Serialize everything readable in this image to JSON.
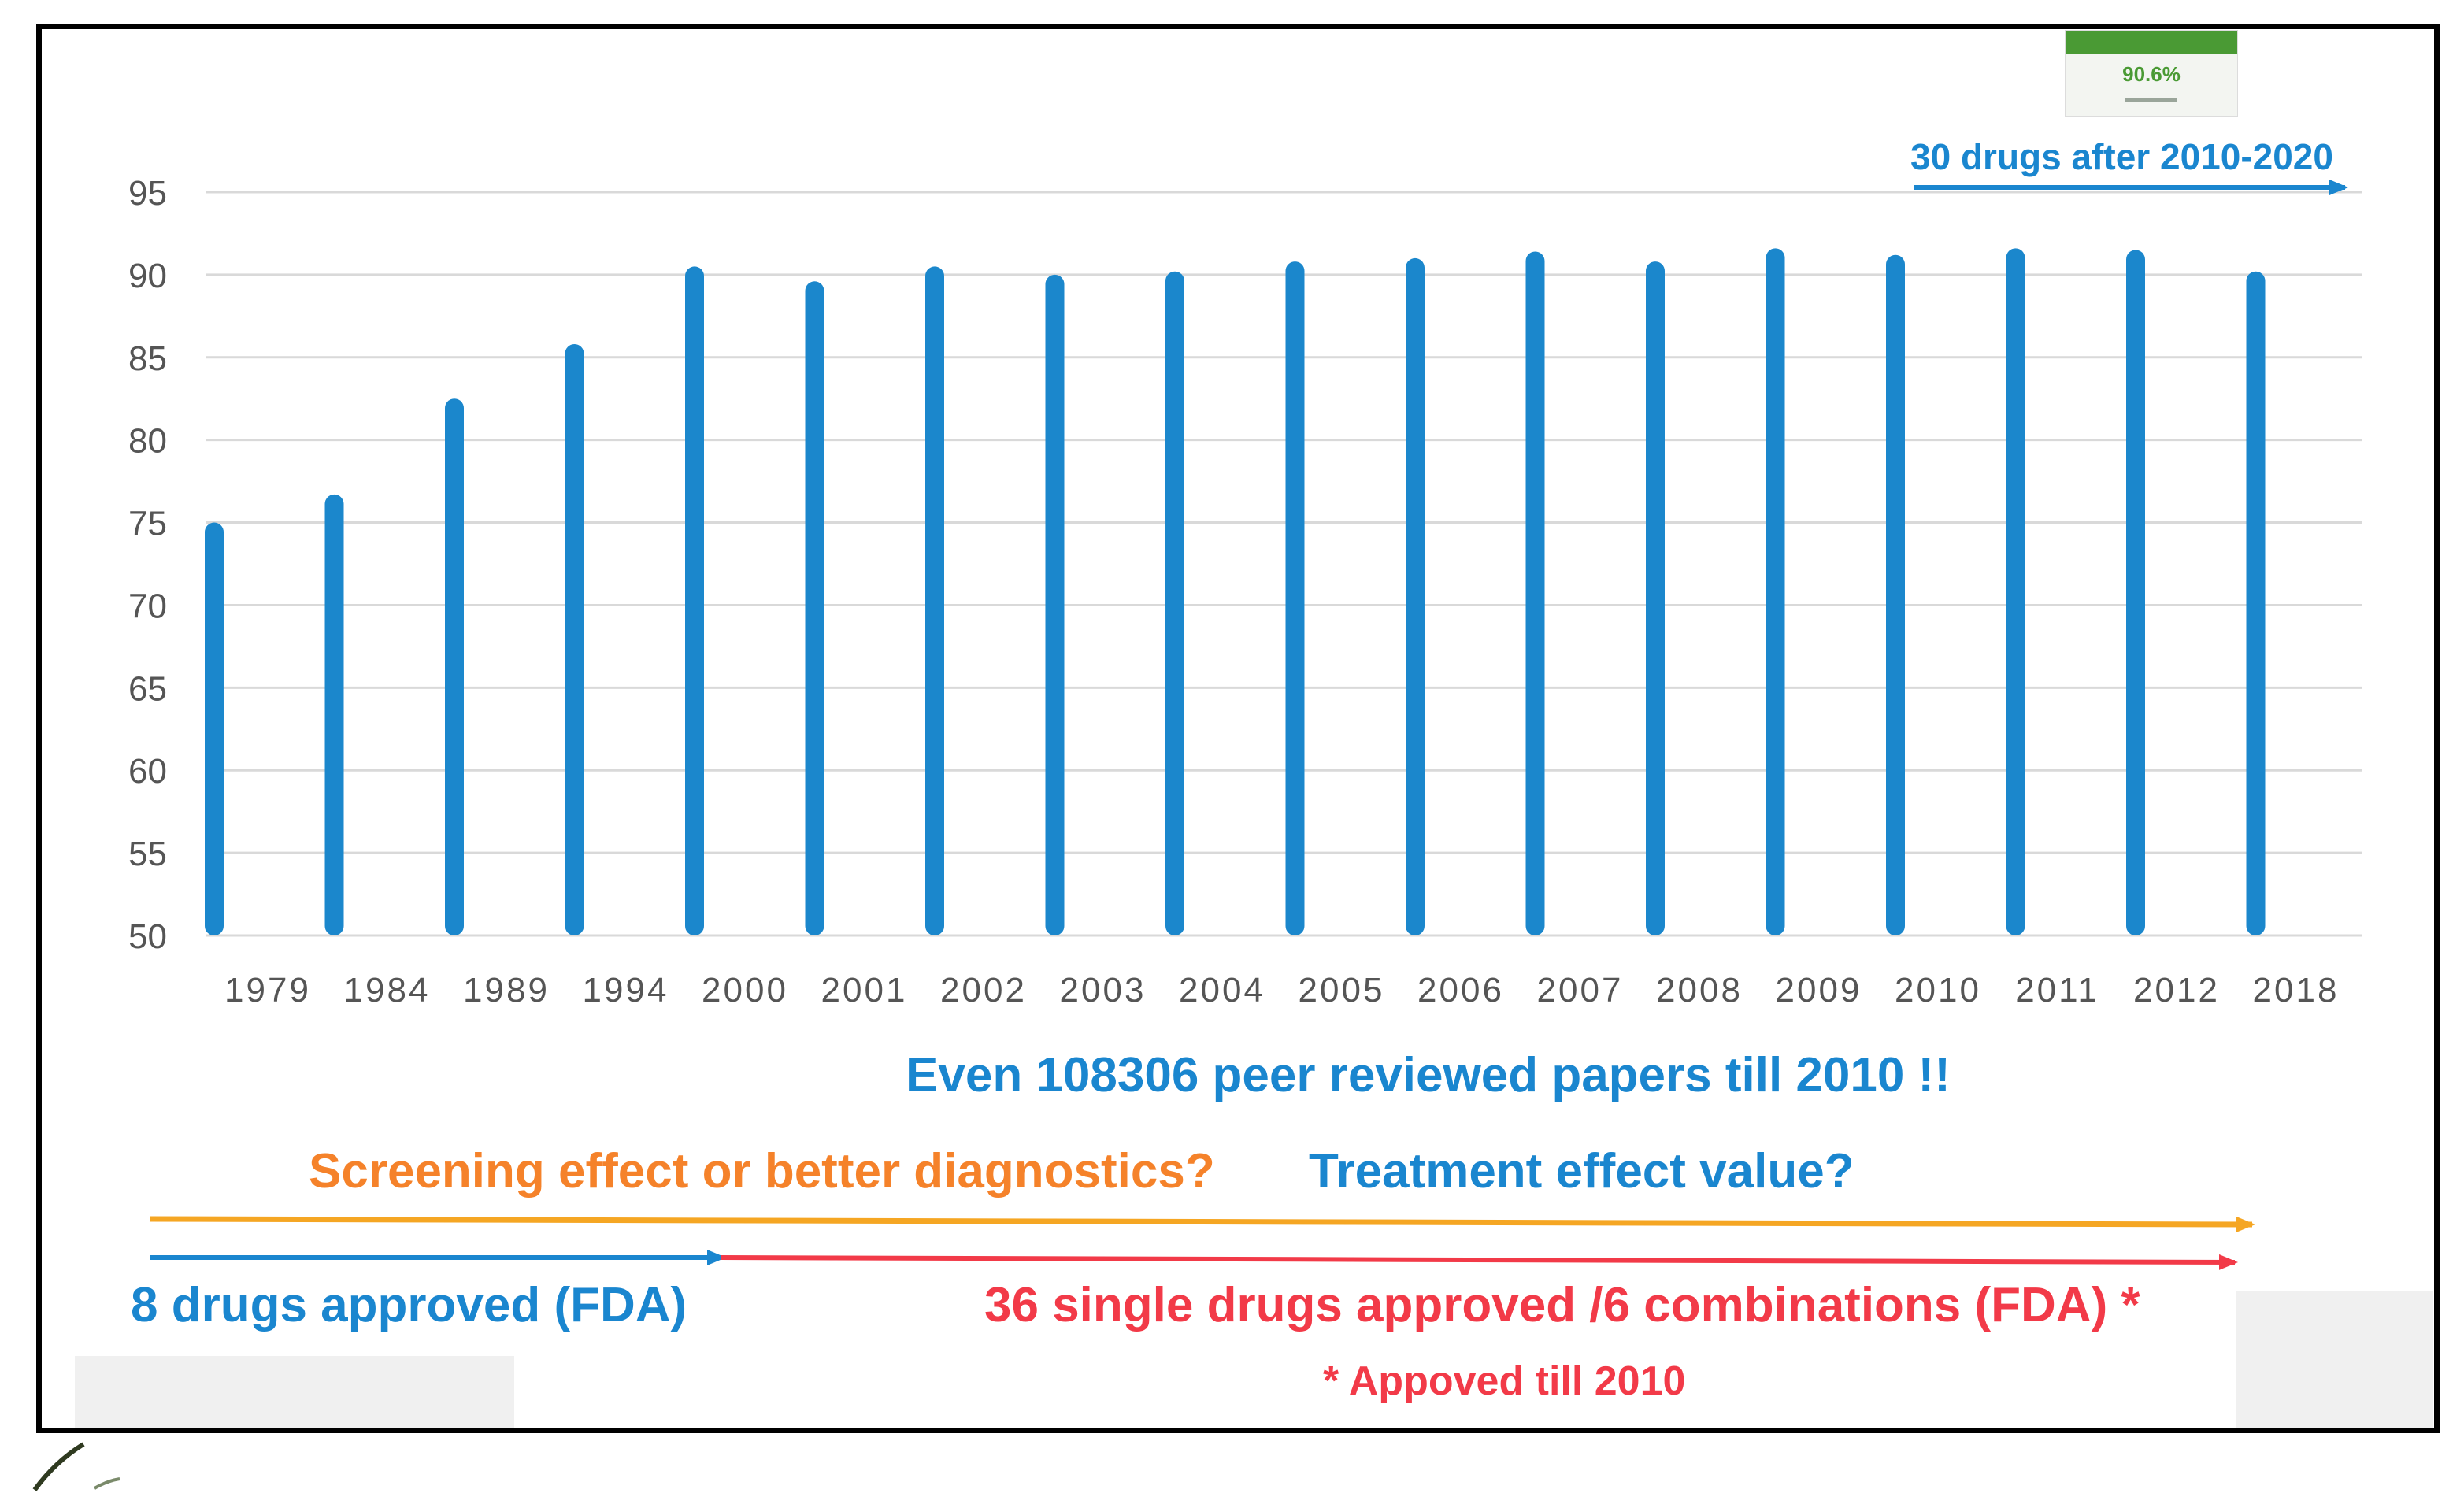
{
  "chart_data": {
    "type": "bar",
    "title": "",
    "xlabel": "",
    "ylabel": "",
    "categories": [
      "1979",
      "1984",
      "1989",
      "1994",
      "2000",
      "2001",
      "2002",
      "2003",
      "2004",
      "2005",
      "2006",
      "2007",
      "2008",
      "2009",
      "2010",
      "2011",
      "2012",
      "2018"
    ],
    "values": [
      75.0,
      76.7,
      82.5,
      85.8,
      90.5,
      89.6,
      90.5,
      90.0,
      90.2,
      90.8,
      91.0,
      91.4,
      90.8,
      91.6,
      91.2,
      91.6,
      91.5,
      90.2
    ],
    "ylim": [
      50,
      95
    ],
    "yticks": [
      50,
      55,
      60,
      65,
      70,
      75,
      80,
      85,
      90,
      95
    ],
    "grid": true,
    "bar_color": "#1b87cc",
    "grid_color": "#d9d9d9"
  },
  "annotations": {
    "papers": "Even 108306 peer reviewed papers till 2010 !!",
    "screening": "Screening effect or better diagnostics?",
    "treatment": "Treatment effect value?",
    "drugs_8": "8 drugs approved (FDA)",
    "drugs_36": "36 single drugs approved /6 combinations (FDA) *",
    "approved_note": "* Appoved till 2010",
    "drugs_30": "30 drugs after 2010-2020"
  },
  "thumbnail": {
    "value": "90.6%"
  },
  "colors": {
    "blue": "#1a86cf",
    "orange": "#f5a623",
    "red": "#f23a48",
    "green": "#4a9a34"
  }
}
